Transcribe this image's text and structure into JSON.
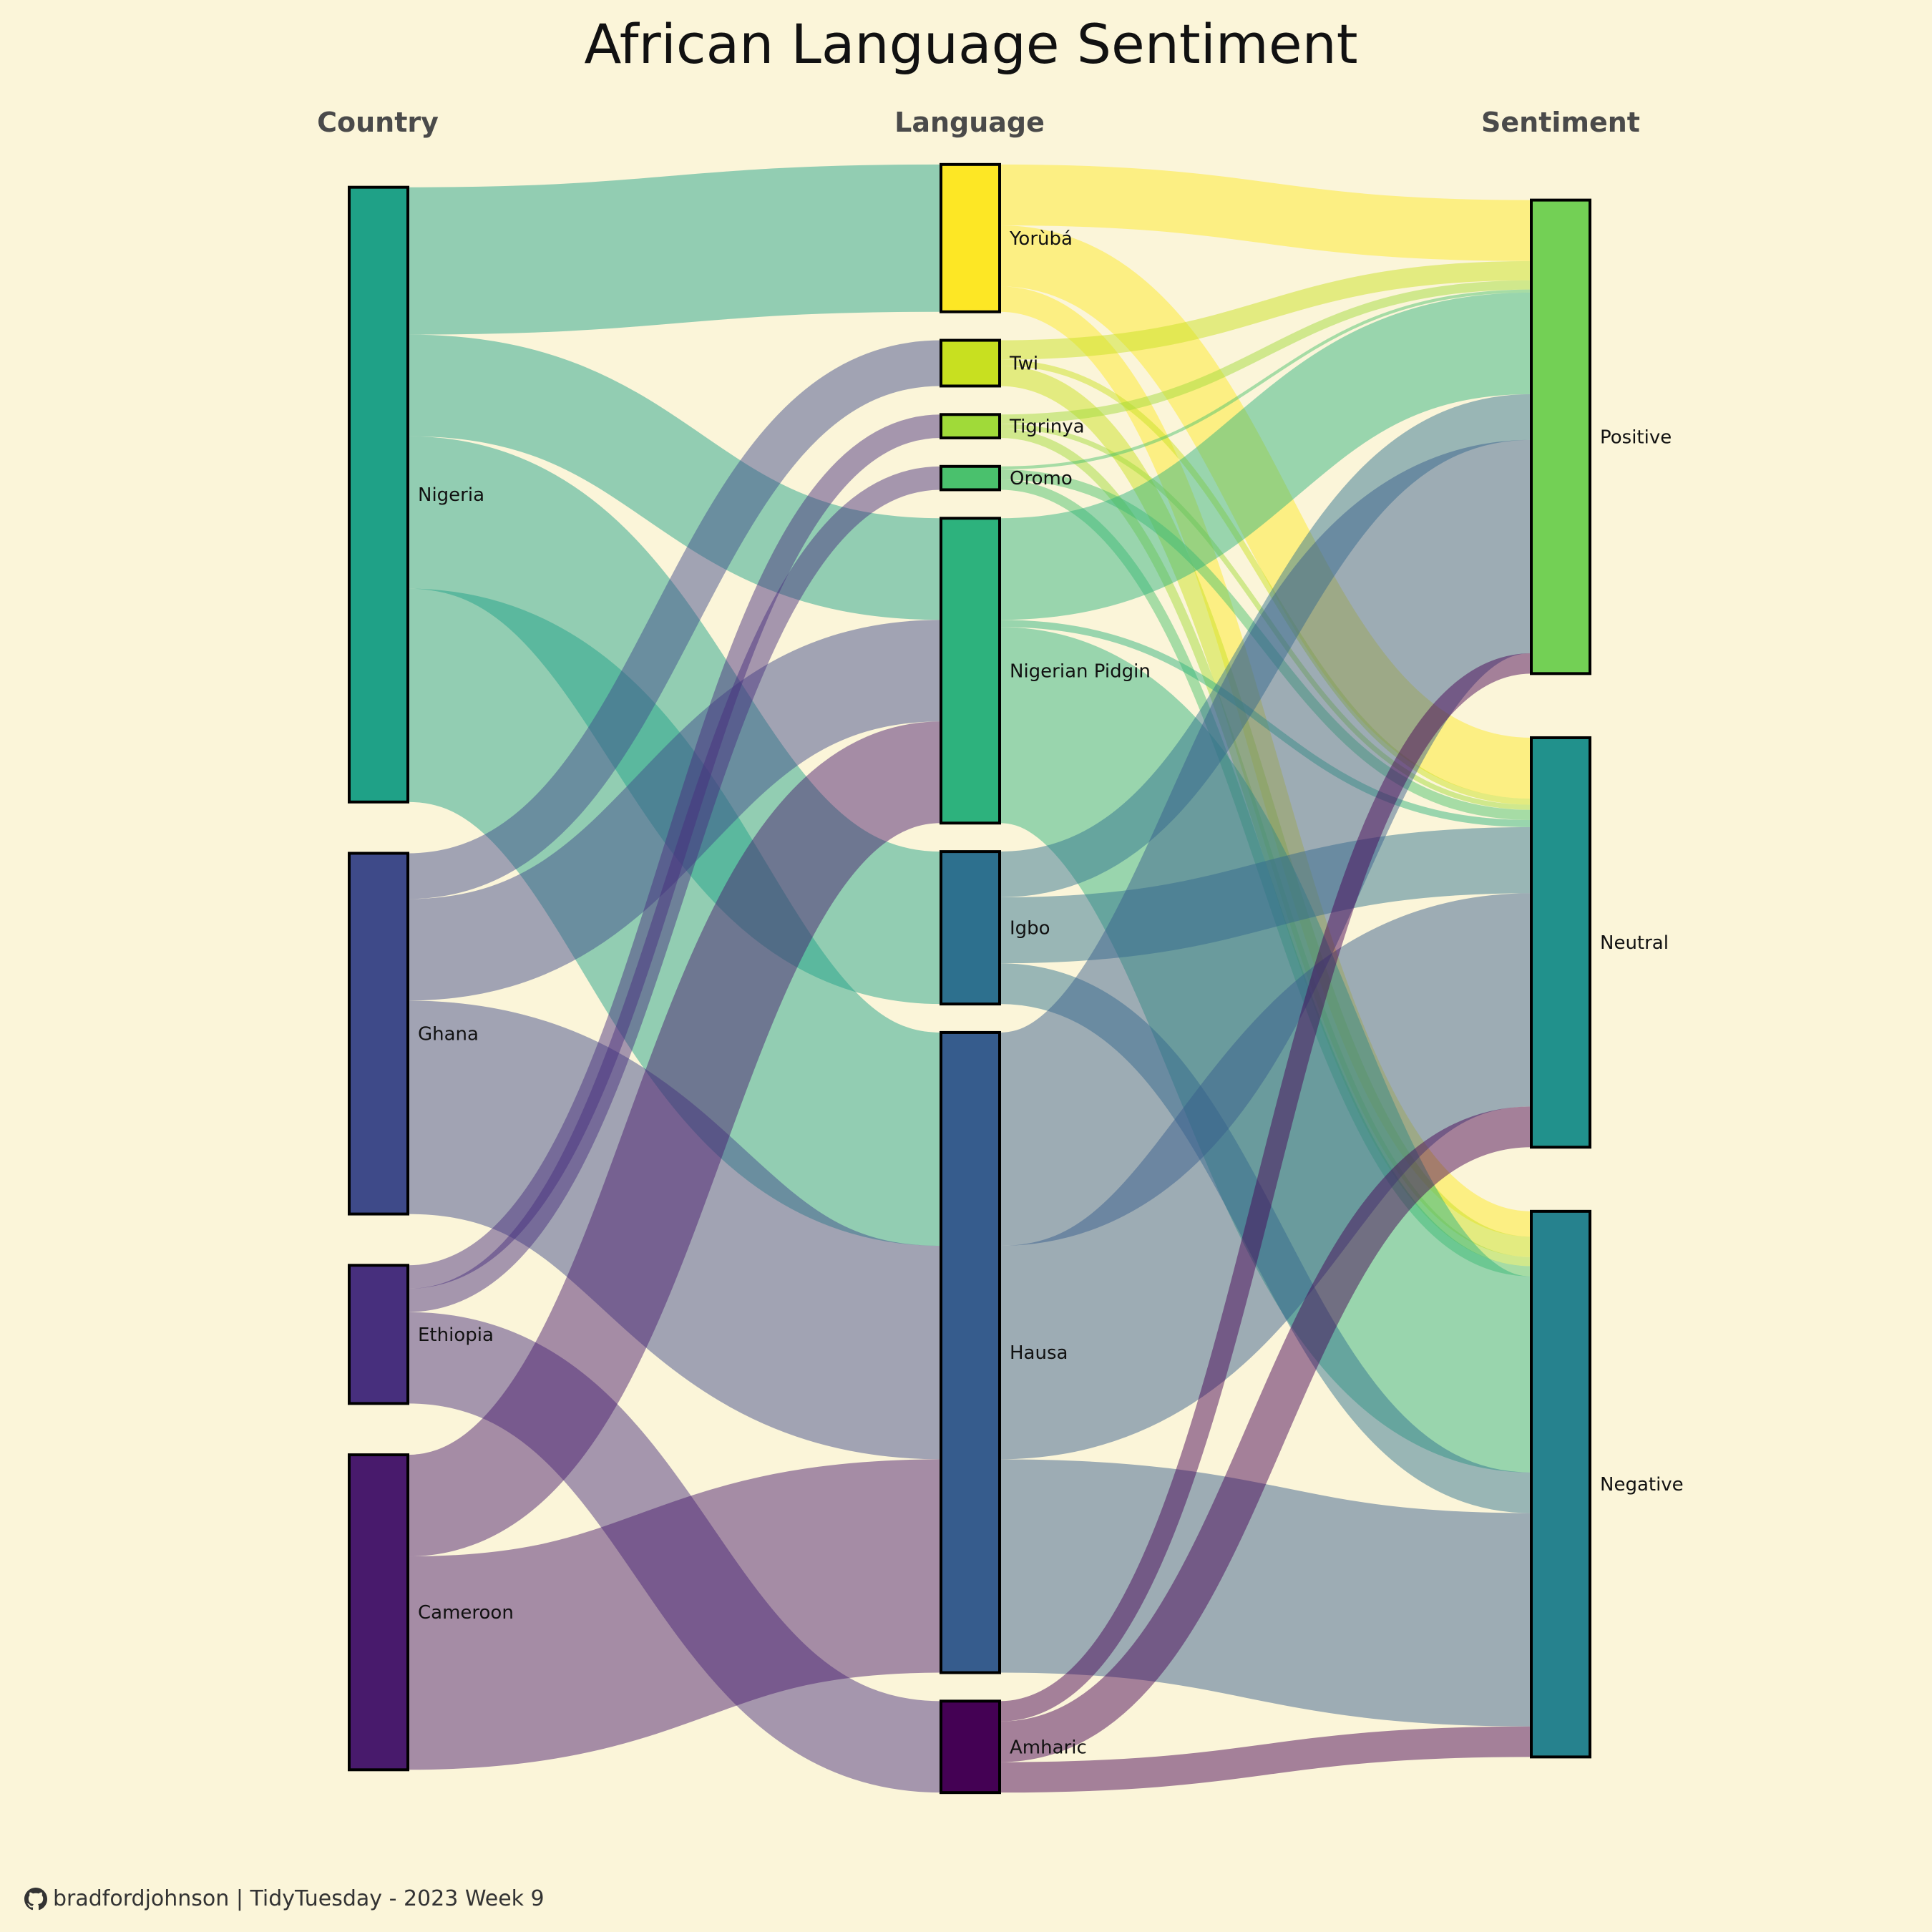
{
  "chart_data": {
    "type": "sankey",
    "title": "African Language Sentiment",
    "stage_headers": [
      "Country",
      "Language",
      "Sentiment"
    ],
    "stages": [
      [
        "Nigeria",
        "Ghana",
        "Ethiopia",
        "Cameroon"
      ],
      [
        "Yorùbá",
        "Twi",
        "Tigrinya",
        "Oromo",
        "Nigerian Pidgin",
        "Igbo",
        "Hausa",
        "Amharic"
      ],
      [
        "Positive",
        "Neutral",
        "Negative"
      ]
    ],
    "node_colors": {
      "Nigeria": "#1FA187",
      "Ghana": "#3E4A89",
      "Ethiopia": "#472F7D",
      "Cameroon": "#481A6C",
      "Yorùbá": "#FDE725",
      "Twi": "#C8E020",
      "Tigrinya": "#A0DA39",
      "Oromo": "#4AC16D",
      "Nigerian Pidgin": "#2DB27D",
      "Igbo": "#2D708E",
      "Hausa": "#365C8D",
      "Amharic": "#440154",
      "Positive": "#73D055",
      "Neutral": "#21918C",
      "Negative": "#26828E"
    },
    "links": [
      {
        "source": "Nigeria",
        "target": "Yorùbá",
        "value": 14.5
      },
      {
        "source": "Nigeria",
        "target": "Nigerian Pidgin",
        "value": 10
      },
      {
        "source": "Nigeria",
        "target": "Igbo",
        "value": 15
      },
      {
        "source": "Nigeria",
        "target": "Hausa",
        "value": 21
      },
      {
        "source": "Ghana",
        "target": "Twi",
        "value": 4.5
      },
      {
        "source": "Ghana",
        "target": "Nigerian Pidgin",
        "value": 10
      },
      {
        "source": "Ghana",
        "target": "Hausa",
        "value": 21
      },
      {
        "source": "Ethiopia",
        "target": "Tigrinya",
        "value": 2.3
      },
      {
        "source": "Ethiopia",
        "target": "Oromo",
        "value": 2.3
      },
      {
        "source": "Ethiopia",
        "target": "Amharic",
        "value": 9
      },
      {
        "source": "Cameroon",
        "target": "Nigerian Pidgin",
        "value": 10
      },
      {
        "source": "Cameroon",
        "target": "Hausa",
        "value": 21
      },
      {
        "source": "Yorùbá",
        "target": "Positive",
        "value": 6
      },
      {
        "source": "Yorùbá",
        "target": "Neutral",
        "value": 6
      },
      {
        "source": "Yorùbá",
        "target": "Negative",
        "value": 2.5
      },
      {
        "source": "Twi",
        "target": "Positive",
        "value": 1.9
      },
      {
        "source": "Twi",
        "target": "Neutral",
        "value": 0.6
      },
      {
        "source": "Twi",
        "target": "Negative",
        "value": 2
      },
      {
        "source": "Tigrinya",
        "target": "Positive",
        "value": 0.9
      },
      {
        "source": "Tigrinya",
        "target": "Neutral",
        "value": 0.5
      },
      {
        "source": "Tigrinya",
        "target": "Negative",
        "value": 0.9
      },
      {
        "source": "Oromo",
        "target": "Positive",
        "value": 0.3
      },
      {
        "source": "Oromo",
        "target": "Neutral",
        "value": 1.0
      },
      {
        "source": "Oromo",
        "target": "Negative",
        "value": 1.0
      },
      {
        "source": "Nigerian Pidgin",
        "target": "Positive",
        "value": 10
      },
      {
        "source": "Nigerian Pidgin",
        "target": "Neutral",
        "value": 0.7
      },
      {
        "source": "Nigerian Pidgin",
        "target": "Negative",
        "value": 19.3
      },
      {
        "source": "Igbo",
        "target": "Positive",
        "value": 4.5
      },
      {
        "source": "Igbo",
        "target": "Neutral",
        "value": 6.5
      },
      {
        "source": "Igbo",
        "target": "Negative",
        "value": 4
      },
      {
        "source": "Hausa",
        "target": "Positive",
        "value": 21
      },
      {
        "source": "Hausa",
        "target": "Neutral",
        "value": 21
      },
      {
        "source": "Hausa",
        "target": "Negative",
        "value": 21
      },
      {
        "source": "Amharic",
        "target": "Positive",
        "value": 2
      },
      {
        "source": "Amharic",
        "target": "Neutral",
        "value": 4
      },
      {
        "source": "Amharic",
        "target": "Negative",
        "value": 3
      }
    ]
  },
  "caption": {
    "icon": "github-icon",
    "text": "bradfordjohnson | TidyTuesday - 2023 Week 9"
  }
}
